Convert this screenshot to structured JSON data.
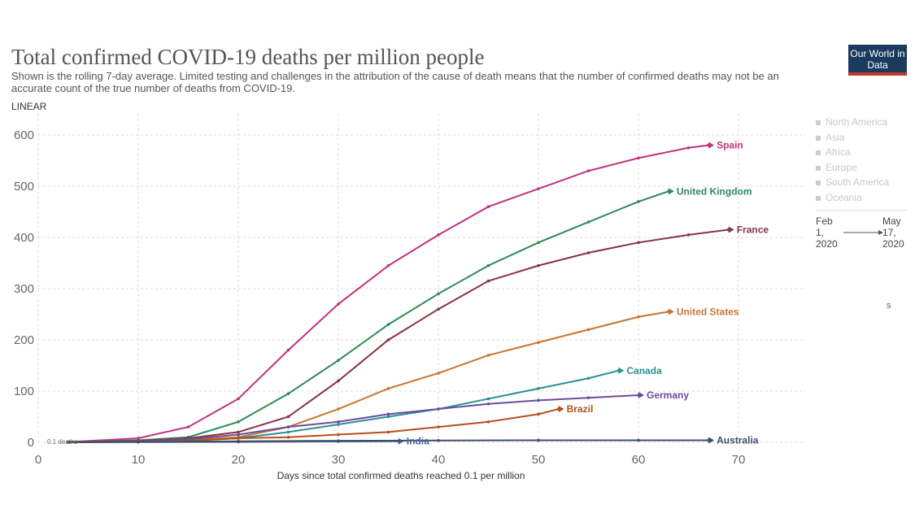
{
  "header": {
    "title": "Total confirmed COVID-19 deaths per million people",
    "subtitle": "Shown is the rolling 7-day average. Limited testing and challenges in the attribution of the cause of death means that the number of confirmed deaths may not be an accurate count of the true number of deaths from COVID-19.",
    "scale": "LINEAR",
    "logo": "Our World in Data"
  },
  "legend": {
    "items": [
      "North America",
      "Asia",
      "Africa",
      "Europe",
      "South America",
      "Oceania"
    ]
  },
  "timeline": {
    "start": "Feb 1, 2020",
    "end": "May 17, 2020"
  },
  "stray_label": "s",
  "chart_data": {
    "type": "line",
    "title": "Total confirmed COVID-19 deaths per million people",
    "xlabel": "Days since total confirmed deaths reached 0.1 per million",
    "ylabel": "",
    "xlim": [
      0,
      76
    ],
    "ylim": [
      0,
      620
    ],
    "xticks": [
      0,
      10,
      20,
      30,
      40,
      50,
      60,
      70
    ],
    "yticks": [
      0,
      100,
      200,
      300,
      400,
      500,
      600
    ],
    "grid": true,
    "annotation": "0.1 deaths",
    "series": [
      {
        "name": "Spain",
        "color": "#c2337a",
        "x": [
          3,
          10,
          15,
          20,
          25,
          30,
          35,
          40,
          45,
          50,
          55,
          60,
          65,
          67
        ],
        "y": [
          0.5,
          8,
          30,
          85,
          180,
          270,
          345,
          405,
          460,
          495,
          530,
          555,
          575,
          580
        ]
      },
      {
        "name": "United Kingdom",
        "color": "#2e8b57",
        "x": [
          3,
          10,
          15,
          20,
          25,
          30,
          35,
          40,
          45,
          50,
          55,
          60,
          63
        ],
        "y": [
          0.5,
          4,
          10,
          40,
          95,
          160,
          230,
          290,
          345,
          390,
          430,
          470,
          490
        ]
      },
      {
        "name": "France",
        "color": "#883344",
        "x": [
          3,
          10,
          15,
          20,
          25,
          30,
          35,
          40,
          45,
          50,
          55,
          60,
          65,
          69
        ],
        "y": [
          0.5,
          3,
          8,
          20,
          50,
          120,
          200,
          260,
          315,
          345,
          370,
          390,
          405,
          415
        ]
      },
      {
        "name": "United States",
        "color": "#c87533",
        "x": [
          3,
          10,
          15,
          20,
          25,
          30,
          35,
          40,
          45,
          50,
          55,
          60,
          63
        ],
        "y": [
          0.3,
          2,
          5,
          10,
          30,
          65,
          105,
          135,
          170,
          195,
          220,
          245,
          255
        ]
      },
      {
        "name": "Canada",
        "color": "#2a9090",
        "x": [
          3,
          10,
          15,
          20,
          25,
          30,
          35,
          40,
          45,
          50,
          55,
          58
        ],
        "y": [
          0.3,
          1,
          3,
          8,
          20,
          35,
          50,
          65,
          85,
          105,
          125,
          140
        ]
      },
      {
        "name": "Germany",
        "color": "#6a4c9c",
        "x": [
          3,
          10,
          15,
          20,
          25,
          30,
          35,
          40,
          45,
          50,
          55,
          60
        ],
        "y": [
          0.3,
          2,
          6,
          15,
          30,
          40,
          55,
          65,
          75,
          82,
          87,
          92
        ]
      },
      {
        "name": "Brazil",
        "color": "#b5501e",
        "x": [
          3,
          10,
          15,
          20,
          25,
          30,
          35,
          40,
          45,
          50,
          52
        ],
        "y": [
          0.3,
          1,
          3,
          8,
          10,
          15,
          20,
          30,
          40,
          55,
          65
        ]
      },
      {
        "name": "India",
        "color": "#4a6a9c",
        "x": [
          3,
          10,
          20,
          30,
          36
        ],
        "y": [
          0.1,
          0.3,
          0.8,
          1.5,
          2
        ]
      },
      {
        "name": "Australia",
        "color": "#3c4e66",
        "x": [
          3,
          10,
          20,
          30,
          40,
          50,
          60,
          67
        ],
        "y": [
          0.2,
          1,
          2,
          3,
          3.5,
          4,
          4,
          4
        ]
      }
    ]
  }
}
